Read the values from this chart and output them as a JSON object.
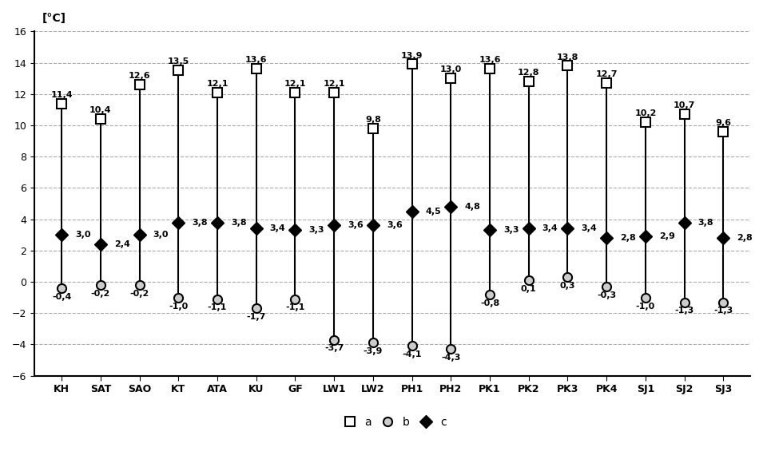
{
  "stations": [
    "KH",
    "SAT",
    "SAO",
    "KT",
    "ATA",
    "KU",
    "GF",
    "LW1",
    "LW2",
    "PH1",
    "PH2",
    "PK1",
    "PK2",
    "PK3",
    "PK4",
    "SJ1",
    "SJ2",
    "SJ3"
  ],
  "max_values": [
    11.4,
    10.4,
    12.6,
    13.5,
    12.1,
    13.6,
    12.1,
    12.1,
    9.8,
    13.9,
    13.0,
    13.6,
    12.8,
    13.8,
    12.7,
    10.2,
    10.7,
    9.6
  ],
  "min_values": [
    -0.4,
    -0.2,
    -0.2,
    -1.0,
    -1.1,
    -1.7,
    -1.1,
    -3.7,
    -3.9,
    -4.1,
    -4.3,
    -0.8,
    0.1,
    0.3,
    -0.3,
    -1.0,
    -1.3,
    -1.3
  ],
  "mean_values": [
    3.0,
    2.4,
    3.0,
    3.8,
    3.8,
    3.4,
    3.3,
    3.6,
    3.6,
    4.5,
    4.8,
    3.3,
    3.4,
    3.4,
    2.8,
    2.9,
    3.8,
    2.8
  ],
  "ylim": [
    -6,
    16
  ],
  "yticks": [
    -6,
    -4,
    -2,
    0,
    2,
    4,
    6,
    8,
    10,
    12,
    14,
    16
  ],
  "ylabel": "[°C]",
  "grid_color": "#aaaaaa",
  "line_color": "#000000",
  "max_marker": "square",
  "min_marker": "circle",
  "mean_marker": "diamond",
  "legend_labels": [
    "a",
    "b",
    "c"
  ],
  "background_color": "#ffffff"
}
